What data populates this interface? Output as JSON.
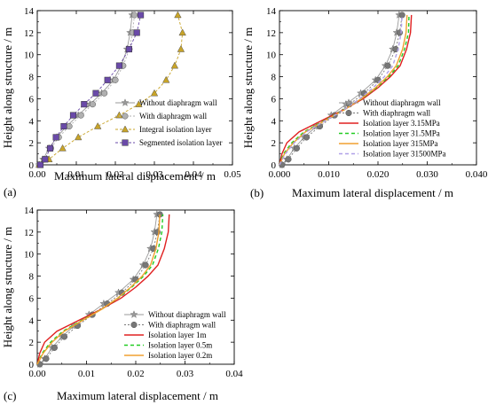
{
  "chart_data": [
    {
      "panel_label": "(a)",
      "type": "line",
      "xlabel": "Maximum lateral displacement / m",
      "ylabel": "Height along structure / m",
      "xlim": [
        0.0,
        0.05
      ],
      "ylim": [
        0,
        14
      ],
      "xticks": [
        "0.00",
        "0.01",
        "0.02",
        "0.03",
        "0.04",
        "0.05"
      ],
      "yticks": [
        "0",
        "2",
        "4",
        "6",
        "8",
        "10",
        "12",
        "14"
      ],
      "legend_position": "bottom-right",
      "series": [
        {
          "name": "Without diaphragm wall",
          "color": "#9a9a9a",
          "marker": "star",
          "dash": "none",
          "x": [
            0.0005,
            0.0015,
            0.003,
            0.005,
            0.0075,
            0.0105,
            0.0135,
            0.0165,
            0.0195,
            0.0215,
            0.023,
            0.0238,
            0.0243
          ],
          "y": [
            0,
            0.5,
            1.5,
            2.5,
            3.5,
            4.5,
            5.5,
            6.5,
            7.7,
            9,
            10.5,
            12,
            13.6
          ]
        },
        {
          "name": "With diaphragm wall",
          "color": "#b0b0b0",
          "marker": "circle",
          "dash": "2,2",
          "x": [
            0.0005,
            0.0018,
            0.0035,
            0.0055,
            0.0082,
            0.0112,
            0.0142,
            0.0172,
            0.02,
            0.022,
            0.0236,
            0.0244,
            0.0249
          ],
          "y": [
            0,
            0.5,
            1.5,
            2.5,
            3.5,
            4.5,
            5.5,
            6.5,
            7.7,
            9,
            10.5,
            12,
            13.6
          ]
        },
        {
          "name": "Integral isolation layer",
          "color": "#c8a428",
          "marker": "triangle",
          "dash": "3,2",
          "x": [
            0.0005,
            0.003,
            0.0065,
            0.0105,
            0.0155,
            0.021,
            0.026,
            0.03,
            0.033,
            0.0352,
            0.0368,
            0.0372,
            0.036
          ],
          "y": [
            0,
            0.5,
            1.5,
            2.5,
            3.5,
            4.5,
            5.5,
            6.5,
            7.7,
            9,
            10.5,
            12,
            13.6
          ]
        },
        {
          "name": "Segmented isolation layer",
          "color": "#6a4aa8",
          "marker": "square",
          "dash": "3,2",
          "x": [
            0.0008,
            0.002,
            0.0033,
            0.0048,
            0.0068,
            0.0092,
            0.012,
            0.015,
            0.018,
            0.021,
            0.0235,
            0.0255,
            0.0265
          ],
          "y": [
            0,
            0.5,
            1.5,
            2.5,
            3.5,
            4.5,
            5.5,
            6.5,
            7.7,
            9,
            10.5,
            12,
            13.6
          ]
        }
      ]
    },
    {
      "panel_label": "(b)",
      "type": "line",
      "xlabel": "Maximum lateral displacement / m",
      "ylabel": "Height along structure / m",
      "xlim": [
        0.0,
        0.04
      ],
      "ylim": [
        0,
        14
      ],
      "xticks": [
        "0.000",
        "0.010",
        "0.020",
        "0.030",
        "0.040"
      ],
      "yticks": [
        "0",
        "2",
        "4",
        "6",
        "8",
        "10",
        "12",
        "14"
      ],
      "legend_position": "bottom-right",
      "series": [
        {
          "name": "Without diaphragm wall",
          "color": "#9a9a9a",
          "marker": "star",
          "dash": "none",
          "x": [
            0.0005,
            0.0015,
            0.003,
            0.005,
            0.0075,
            0.0105,
            0.0135,
            0.0165,
            0.0195,
            0.0215,
            0.023,
            0.0238,
            0.0243
          ],
          "y": [
            0,
            0.5,
            1.5,
            2.5,
            3.5,
            4.5,
            5.5,
            6.5,
            7.7,
            9,
            10.5,
            12,
            13.6
          ]
        },
        {
          "name": "With diaphragm wall",
          "color": "#777777",
          "marker": "circle",
          "dash": "2,2",
          "x": [
            0.0005,
            0.0018,
            0.0035,
            0.0055,
            0.0082,
            0.0112,
            0.0142,
            0.0172,
            0.02,
            0.022,
            0.0236,
            0.0244,
            0.0249
          ],
          "y": [
            0,
            0.5,
            1.5,
            2.5,
            3.5,
            4.5,
            5.5,
            6.5,
            7.7,
            9,
            10.5,
            12,
            13.6
          ]
        },
        {
          "name": "Isolation layer 3.15MPa",
          "color": "#e02020",
          "marker": "none",
          "dash": "none",
          "x": [
            0.0,
            0.0005,
            0.0015,
            0.004,
            0.0085,
            0.013,
            0.017,
            0.02,
            0.0225,
            0.0245,
            0.0258,
            0.0266,
            0.0268
          ],
          "y": [
            0,
            1,
            2,
            3,
            4,
            5,
            6,
            7,
            8,
            9,
            10.5,
            12,
            13.6
          ]
        },
        {
          "name": "Isolation layer 31.5MPa",
          "color": "#22cc22",
          "marker": "none",
          "dash": "4,3",
          "x": [
            0.0,
            0.0008,
            0.0025,
            0.005,
            0.009,
            0.013,
            0.0167,
            0.0197,
            0.0222,
            0.0241,
            0.0254,
            0.0262,
            0.0263
          ],
          "y": [
            0,
            1,
            2,
            3,
            4,
            5,
            6,
            7,
            8,
            9,
            10.5,
            12,
            13.6
          ]
        },
        {
          "name": "Isolation layer 315MPa",
          "color": "#f0a030",
          "marker": "none",
          "dash": "none",
          "x": [
            0.0,
            0.001,
            0.0028,
            0.0053,
            0.0092,
            0.0132,
            0.0166,
            0.0195,
            0.0219,
            0.0237,
            0.025,
            0.0257,
            0.0259
          ],
          "y": [
            0,
            1,
            2,
            3,
            4,
            5,
            6,
            7,
            8,
            9,
            10.5,
            12,
            13.6
          ]
        },
        {
          "name": "Isolation layer 31500MPa",
          "color": "#b0a0e8",
          "marker": "none",
          "dash": "4,3",
          "x": [
            0.0,
            0.0012,
            0.003,
            0.0055,
            0.0093,
            0.0131,
            0.0163,
            0.019,
            0.0213,
            0.023,
            0.0241,
            0.0247,
            0.0249
          ],
          "y": [
            0,
            1,
            2,
            3,
            4,
            5,
            6,
            7,
            8,
            9,
            10.5,
            12,
            13.6
          ]
        }
      ]
    },
    {
      "panel_label": "(c)",
      "type": "line",
      "xlabel": "Maximum lateral displacement / m",
      "ylabel": "Height along structure / m",
      "xlim": [
        0.0,
        0.04
      ],
      "ylim": [
        0,
        14
      ],
      "xticks": [
        "0.00",
        "0.01",
        "0.02",
        "0.03",
        "0.04"
      ],
      "yticks": [
        "0",
        "2",
        "4",
        "6",
        "8",
        "10",
        "12",
        "14"
      ],
      "legend_position": "bottom-right",
      "series": [
        {
          "name": "Without diaphragm wall",
          "color": "#9a9a9a",
          "marker": "star",
          "dash": "none",
          "x": [
            0.0005,
            0.0015,
            0.003,
            0.005,
            0.0075,
            0.0105,
            0.0135,
            0.0165,
            0.0195,
            0.0215,
            0.023,
            0.0238,
            0.0243
          ],
          "y": [
            0,
            0.5,
            1.5,
            2.5,
            3.5,
            4.5,
            5.5,
            6.5,
            7.7,
            9,
            10.5,
            12,
            13.6
          ]
        },
        {
          "name": "With diaphragm wall",
          "color": "#777777",
          "marker": "circle",
          "dash": "2,2",
          "x": [
            0.0005,
            0.0018,
            0.0035,
            0.0055,
            0.0082,
            0.0112,
            0.0142,
            0.0172,
            0.02,
            0.022,
            0.0236,
            0.0244,
            0.0249
          ],
          "y": [
            0,
            0.5,
            1.5,
            2.5,
            3.5,
            4.5,
            5.5,
            6.5,
            7.7,
            9,
            10.5,
            12,
            13.6
          ]
        },
        {
          "name": "Isolation layer 1m",
          "color": "#e02020",
          "marker": "none",
          "dash": "none",
          "x": [
            0.0,
            0.0005,
            0.0015,
            0.004,
            0.0085,
            0.013,
            0.017,
            0.02,
            0.0225,
            0.0245,
            0.0258,
            0.0266,
            0.0268
          ],
          "y": [
            0,
            1,
            2,
            3,
            4,
            5,
            6,
            7,
            8,
            9,
            10.5,
            12,
            13.6
          ]
        },
        {
          "name": "Isolation layer 0.5m",
          "color": "#22cc22",
          "marker": "none",
          "dash": "4,3",
          "x": [
            0.0,
            0.001,
            0.0027,
            0.0052,
            0.0091,
            0.0131,
            0.0164,
            0.0192,
            0.0216,
            0.0234,
            0.0246,
            0.0253,
            0.0255
          ],
          "y": [
            0,
            1,
            2,
            3,
            4,
            5,
            6,
            7,
            8,
            9,
            10.5,
            12,
            13.6
          ]
        },
        {
          "name": "Isolation layer 0.2m",
          "color": "#f0a030",
          "marker": "none",
          "dash": "none",
          "x": [
            0.0,
            0.0012,
            0.003,
            0.0055,
            0.0093,
            0.0131,
            0.0163,
            0.019,
            0.0213,
            0.023,
            0.0241,
            0.0247,
            0.0249
          ],
          "y": [
            0,
            1,
            2,
            3,
            4,
            5,
            6,
            7,
            8,
            9,
            10.5,
            12,
            13.6
          ]
        }
      ]
    }
  ]
}
